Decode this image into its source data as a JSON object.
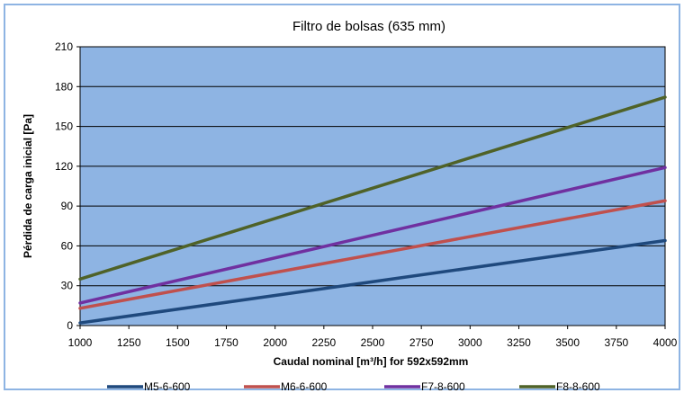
{
  "chart_data": {
    "type": "line",
    "title": "Filtro de bolsas  (635 mm)",
    "xlabel": "Caudal nominal [m³/h] for 592x592mm",
    "ylabel": "Pérdida de carga inicial [Pa]",
    "xlim": [
      1000,
      4000
    ],
    "ylim": [
      0,
      210
    ],
    "x_ticks": [
      "1000",
      "1250",
      "1500",
      "1750",
      "2000",
      "2250",
      "2500",
      "2750",
      "3000",
      "3250",
      "3500",
      "3750",
      "4000"
    ],
    "y_ticks": [
      "0",
      "30",
      "60",
      "90",
      "120",
      "150",
      "180",
      "210"
    ],
    "grid": "horizontal",
    "plot_background": "#8eb4e3",
    "legend_position": "bottom",
    "x": [
      1000,
      4000
    ],
    "series": [
      {
        "name": "M5-6-600",
        "values": [
          2,
          64
        ],
        "color": "#1f497d"
      },
      {
        "name": "M6-6-600",
        "values": [
          13,
          94
        ],
        "color": "#c0504d"
      },
      {
        "name": "F7-8-600",
        "values": [
          17,
          119
        ],
        "color": "#7030a0"
      },
      {
        "name": "F8-8-600",
        "values": [
          35,
          172
        ],
        "color": "#4f6228"
      }
    ]
  }
}
